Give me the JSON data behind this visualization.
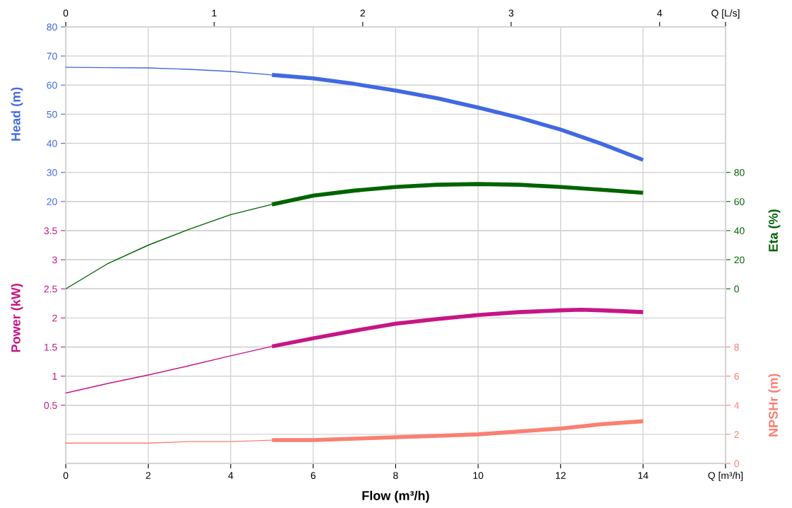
{
  "chart_data": [
    {
      "type": "line",
      "xlabel": "Flow (m³/h)",
      "ylabel": "Head (m)",
      "y2label": "Eta (%)",
      "xlim": [
        0,
        16
      ],
      "xticks": [
        0,
        2,
        4,
        6,
        8,
        10,
        12,
        14,
        {
          "value": 16,
          "label": "Q [m³/h]"
        }
      ],
      "x2lim": [
        0,
        4.444
      ],
      "x2ticks": [
        0,
        1,
        2,
        3,
        4,
        {
          "value": 4.444,
          "label": "Q [L/s]"
        }
      ],
      "ylim": [
        -70,
        80
      ],
      "yticks": [
        20,
        30,
        40,
        50,
        60,
        70,
        80
      ],
      "y2lim": [
        -120,
        180
      ],
      "y2ticks": [
        0,
        20,
        40,
        60,
        80
      ],
      "grid": true,
      "series": [
        {
          "color": "#4169e1",
          "x": [
            0,
            1,
            2,
            3,
            4,
            5
          ],
          "values": [
            66.1,
            66,
            65.9,
            65.4,
            64.7,
            63.5
          ]
        },
        {
          "color": "#4169e1",
          "x": [
            5,
            6,
            7,
            8,
            9,
            10,
            11,
            12,
            13,
            14
          ],
          "values": [
            63.5,
            62.3,
            60.4,
            58.1,
            55.5,
            52.3,
            48.8,
            44.7,
            39.8,
            34.3
          ]
        },
        {
          "color": "#006400",
          "axis": "y2",
          "x": [
            0,
            1,
            2,
            3,
            4,
            5
          ],
          "values": [
            0,
            17,
            30,
            41,
            51,
            58
          ]
        },
        {
          "color": "#006400",
          "axis": "y2",
          "x": [
            5,
            6,
            7,
            8,
            9,
            10,
            11,
            12,
            13,
            14
          ],
          "values": [
            58,
            64,
            67.5,
            70,
            71.5,
            72,
            71.5,
            70,
            68,
            66
          ]
        }
      ]
    },
    {
      "type": "line",
      "ylabel": "Power (kW)",
      "y2label": "NPSHr (m)",
      "tick_labels": "y",
      "xlim": [
        0,
        16
      ],
      "ylim": [
        -0.5,
        7
      ],
      "yticks": [
        0.5,
        1,
        1.5,
        2,
        2.5,
        3,
        3.5
      ],
      "y2lim": [
        0,
        30
      ],
      "y2ticks": [
        0,
        2,
        4,
        6,
        8
      ],
      "grid": "y",
      "series": [
        {
          "color": "#c71585",
          "x": [
            0,
            1,
            2,
            3,
            4,
            5
          ],
          "values": [
            0.71,
            0.87,
            1.02,
            1.18,
            1.35,
            1.51
          ]
        },
        {
          "color": "#c71585",
          "x": [
            5,
            6,
            7,
            8,
            9,
            10,
            11,
            12,
            12.5,
            13,
            14
          ],
          "values": [
            1.51,
            1.65,
            1.78,
            1.9,
            1.98,
            2.05,
            2.1,
            2.13,
            2.14,
            2.13,
            2.1
          ]
        },
        {
          "color": "#fa8072",
          "axis": "y2",
          "x": [
            0,
            1,
            2,
            3,
            4,
            5
          ],
          "values": [
            1.4,
            1.4,
            1.4,
            1.5,
            1.5,
            1.6
          ]
        },
        {
          "color": "#fa8072",
          "axis": "y2",
          "x": [
            5,
            6,
            7,
            8,
            9,
            10,
            11,
            12,
            13,
            14
          ],
          "values": [
            1.6,
            1.6,
            1.7,
            1.8,
            1.9,
            2.0,
            2.2,
            2.4,
            2.7,
            2.9
          ]
        }
      ]
    }
  ]
}
